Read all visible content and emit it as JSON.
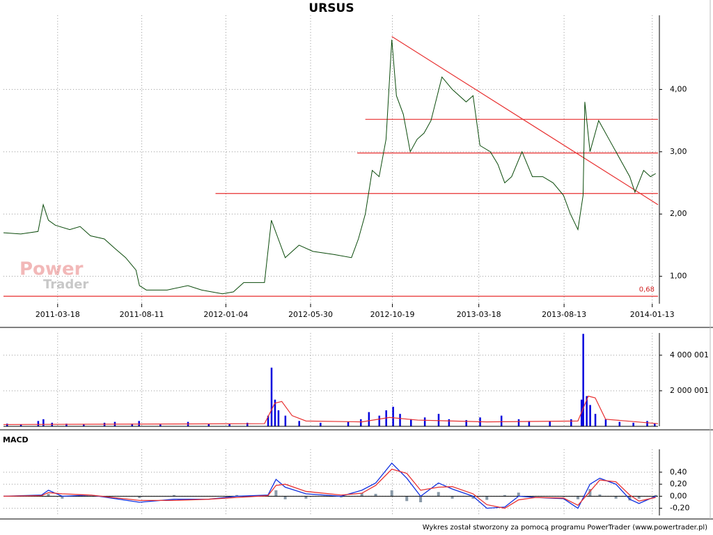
{
  "chart_data": [
    {
      "type": "line",
      "title": "URSUS",
      "watermark": [
        "Power",
        "Trader"
      ],
      "xlim": [
        -94,
        1042
      ],
      "xticks": [
        {
          "value": 0,
          "label": "2011-03-18"
        },
        {
          "value": 146,
          "label": "2011-08-11"
        },
        {
          "value": 292,
          "label": "2012-01-04"
        },
        {
          "value": 439,
          "label": "2012-05-30"
        },
        {
          "value": 581,
          "label": "2012-10-19"
        },
        {
          "value": 731,
          "label": "2013-03-18"
        },
        {
          "value": 879,
          "label": "2013-08-13"
        },
        {
          "value": 1032,
          "label": "2014-01-13"
        }
      ],
      "ylim": [
        0.56,
        5.19
      ],
      "yticks": [
        {
          "value": 1,
          "label": "1,00"
        },
        {
          "value": 2,
          "label": "2,00"
        },
        {
          "value": 3,
          "label": "3,00"
        },
        {
          "value": 4,
          "label": "4,00"
        }
      ],
      "grid": true,
      "series": [
        {
          "color": "#0a4a0a",
          "x": [
            -94,
            -64,
            -34,
            -25,
            -16,
            -4,
            21,
            39,
            57,
            81,
            99,
            118,
            136,
            142,
            154,
            190,
            226,
            250,
            286,
            305,
            323,
            359,
            371,
            383,
            395,
            419,
            443,
            480,
            510,
            522,
            534,
            546,
            558,
            570,
            580,
            588,
            600,
            612,
            624,
            636,
            648,
            667,
            685,
            709,
            721,
            733,
            751,
            764,
            776,
            788,
            806,
            824,
            842,
            860,
            878,
            890,
            903,
            912,
            915,
            924,
            939,
            957,
            975,
            993,
            1002,
            1017,
            1029,
            1038
          ],
          "values": [
            1.7,
            1.68,
            1.72,
            2.15,
            1.9,
            1.82,
            1.75,
            1.8,
            1.65,
            1.6,
            1.45,
            1.3,
            1.1,
            0.85,
            0.78,
            0.78,
            0.85,
            0.78,
            0.72,
            0.75,
            0.9,
            0.9,
            1.9,
            1.6,
            1.3,
            1.5,
            1.4,
            1.35,
            1.3,
            1.6,
            2.0,
            2.7,
            2.6,
            3.2,
            4.8,
            3.9,
            3.6,
            3.0,
            3.2,
            3.3,
            3.5,
            4.2,
            4.0,
            3.8,
            3.9,
            3.1,
            3.0,
            2.8,
            2.5,
            2.6,
            3.0,
            2.6,
            2.6,
            2.5,
            2.3,
            2.0,
            1.75,
            2.3,
            3.8,
            3.0,
            3.5,
            3.2,
            2.9,
            2.6,
            2.35,
            2.7,
            2.6,
            2.65
          ]
        }
      ],
      "trend_lines": [
        {
          "x": [
            580,
            1042
          ],
          "y": [
            4.85,
            2.15
          ]
        },
        {
          "x": [
            534,
            1042
          ],
          "y": [
            3.52,
            3.52
          ]
        },
        {
          "x": [
            520,
            1042
          ],
          "y": [
            2.98,
            2.98
          ]
        },
        {
          "x": [
            274,
            1042
          ],
          "y": [
            2.33,
            2.33
          ]
        },
        {
          "x": [
            -94,
            1042
          ],
          "y": [
            0.68,
            0.68
          ]
        }
      ],
      "level_label": {
        "value": 0.68,
        "label": "0,68"
      },
      "line_color": "#e83030"
    },
    {
      "type": "bar",
      "xlim": [
        -94,
        1042
      ],
      "ylim": [
        0,
        5250000
      ],
      "yticks": [
        {
          "value": 2000001,
          "label": "2 000 001"
        },
        {
          "value": 4000001,
          "label": "4 000 001"
        }
      ],
      "grid": true,
      "series": [
        {
          "color": "#0000dd",
          "x": [
            -88,
            -64,
            -34,
            -25,
            -10,
            15,
            45,
            81,
            99,
            129,
            141,
            178,
            226,
            262,
            298,
            329,
            365,
            371,
            377,
            383,
            395,
            419,
            456,
            504,
            526,
            540,
            558,
            570,
            582,
            594,
            613,
            637,
            661,
            679,
            709,
            733,
            770,
            800,
            818,
            854,
            891,
            909,
            912,
            918,
            924,
            933,
            951,
            975,
            999,
            1023,
            1036
          ],
          "values": [
            150000,
            120000,
            300000,
            400000,
            200000,
            150000,
            100000,
            200000,
            250000,
            150000,
            300000,
            100000,
            250000,
            120000,
            150000,
            200000,
            600000,
            3300000,
            1500000,
            900000,
            600000,
            300000,
            200000,
            250000,
            400000,
            800000,
            600000,
            900000,
            1100000,
            700000,
            400000,
            500000,
            700000,
            400000,
            350000,
            500000,
            600000,
            400000,
            300000,
            300000,
            400000,
            1500000,
            5200000,
            1700000,
            1200000,
            700000,
            400000,
            250000,
            200000,
            300000,
            150000
          ]
        },
        {
          "color": "#e83030",
          "x": [
            -94,
            359,
            377,
            389,
            407,
            431,
            528,
            576,
            625,
            745,
            903,
            921,
            933,
            951,
            1042
          ],
          "values": [
            100000,
            150000,
            1300000,
            1400000,
            600000,
            300000,
            250000,
            500000,
            350000,
            250000,
            300000,
            1700000,
            1600000,
            400000,
            150000
          ]
        }
      ]
    },
    {
      "type": "line",
      "title": "MACD",
      "xlim": [
        -94,
        1042
      ],
      "ylim": [
        -0.32,
        0.78
      ],
      "yticks": [
        {
          "value": -0.2,
          "label": "-0,20"
        },
        {
          "value": 0,
          "label": "0,00"
        },
        {
          "value": 0.2,
          "label": "0,20"
        },
        {
          "value": 0.4,
          "label": "0,40"
        }
      ],
      "grid": true,
      "x": [
        -94,
        -28,
        -16,
        8,
        57,
        142,
        202,
        262,
        311,
        365,
        379,
        395,
        431,
        492,
        528,
        552,
        580,
        606,
        630,
        661,
        685,
        721,
        745,
        776,
        800,
        830,
        878,
        903,
        924,
        941,
        969,
        993,
        1009,
        1038
      ],
      "histogram": {
        "color": "#8a9aa8",
        "values": [
          0,
          0.01,
          0.04,
          -0.04,
          0,
          -0.03,
          0.02,
          0,
          0.02,
          0.01,
          0.1,
          -0.05,
          -0.04,
          -0.02,
          0.05,
          0.04,
          0.1,
          -0.08,
          -0.1,
          0.07,
          -0.04,
          -0.04,
          -0.06,
          0.02,
          0.06,
          0,
          -0.01,
          -0.05,
          0.12,
          0.03,
          -0.04,
          -0.07,
          -0.04,
          0.02
        ]
      },
      "series": [
        {
          "color": "#1030e0",
          "values": [
            0,
            0.02,
            0.1,
            0,
            0.02,
            -0.1,
            -0.05,
            -0.05,
            0,
            0.02,
            0.28,
            0.15,
            0.04,
            0,
            0.1,
            0.22,
            0.55,
            0.3,
            0,
            0.22,
            0.12,
            0,
            -0.2,
            -0.18,
            0,
            -0.02,
            -0.04,
            -0.2,
            0.2,
            0.3,
            0.2,
            -0.05,
            -0.12,
            0
          ]
        },
        {
          "color": "#e83030",
          "values": [
            0,
            0.01,
            0.06,
            0.04,
            0.02,
            -0.07,
            -0.07,
            -0.05,
            -0.02,
            0.01,
            0.18,
            0.2,
            0.08,
            0.02,
            0.05,
            0.18,
            0.45,
            0.38,
            0.1,
            0.15,
            0.16,
            0.04,
            -0.14,
            -0.2,
            -0.06,
            -0.02,
            -0.03,
            -0.15,
            0.08,
            0.27,
            0.24,
            0.02,
            -0.08,
            -0.02
          ]
        }
      ]
    }
  ],
  "footer": "Wykres został stworzony za pomocą programu PowerTrader (www.powertrader.pl)"
}
